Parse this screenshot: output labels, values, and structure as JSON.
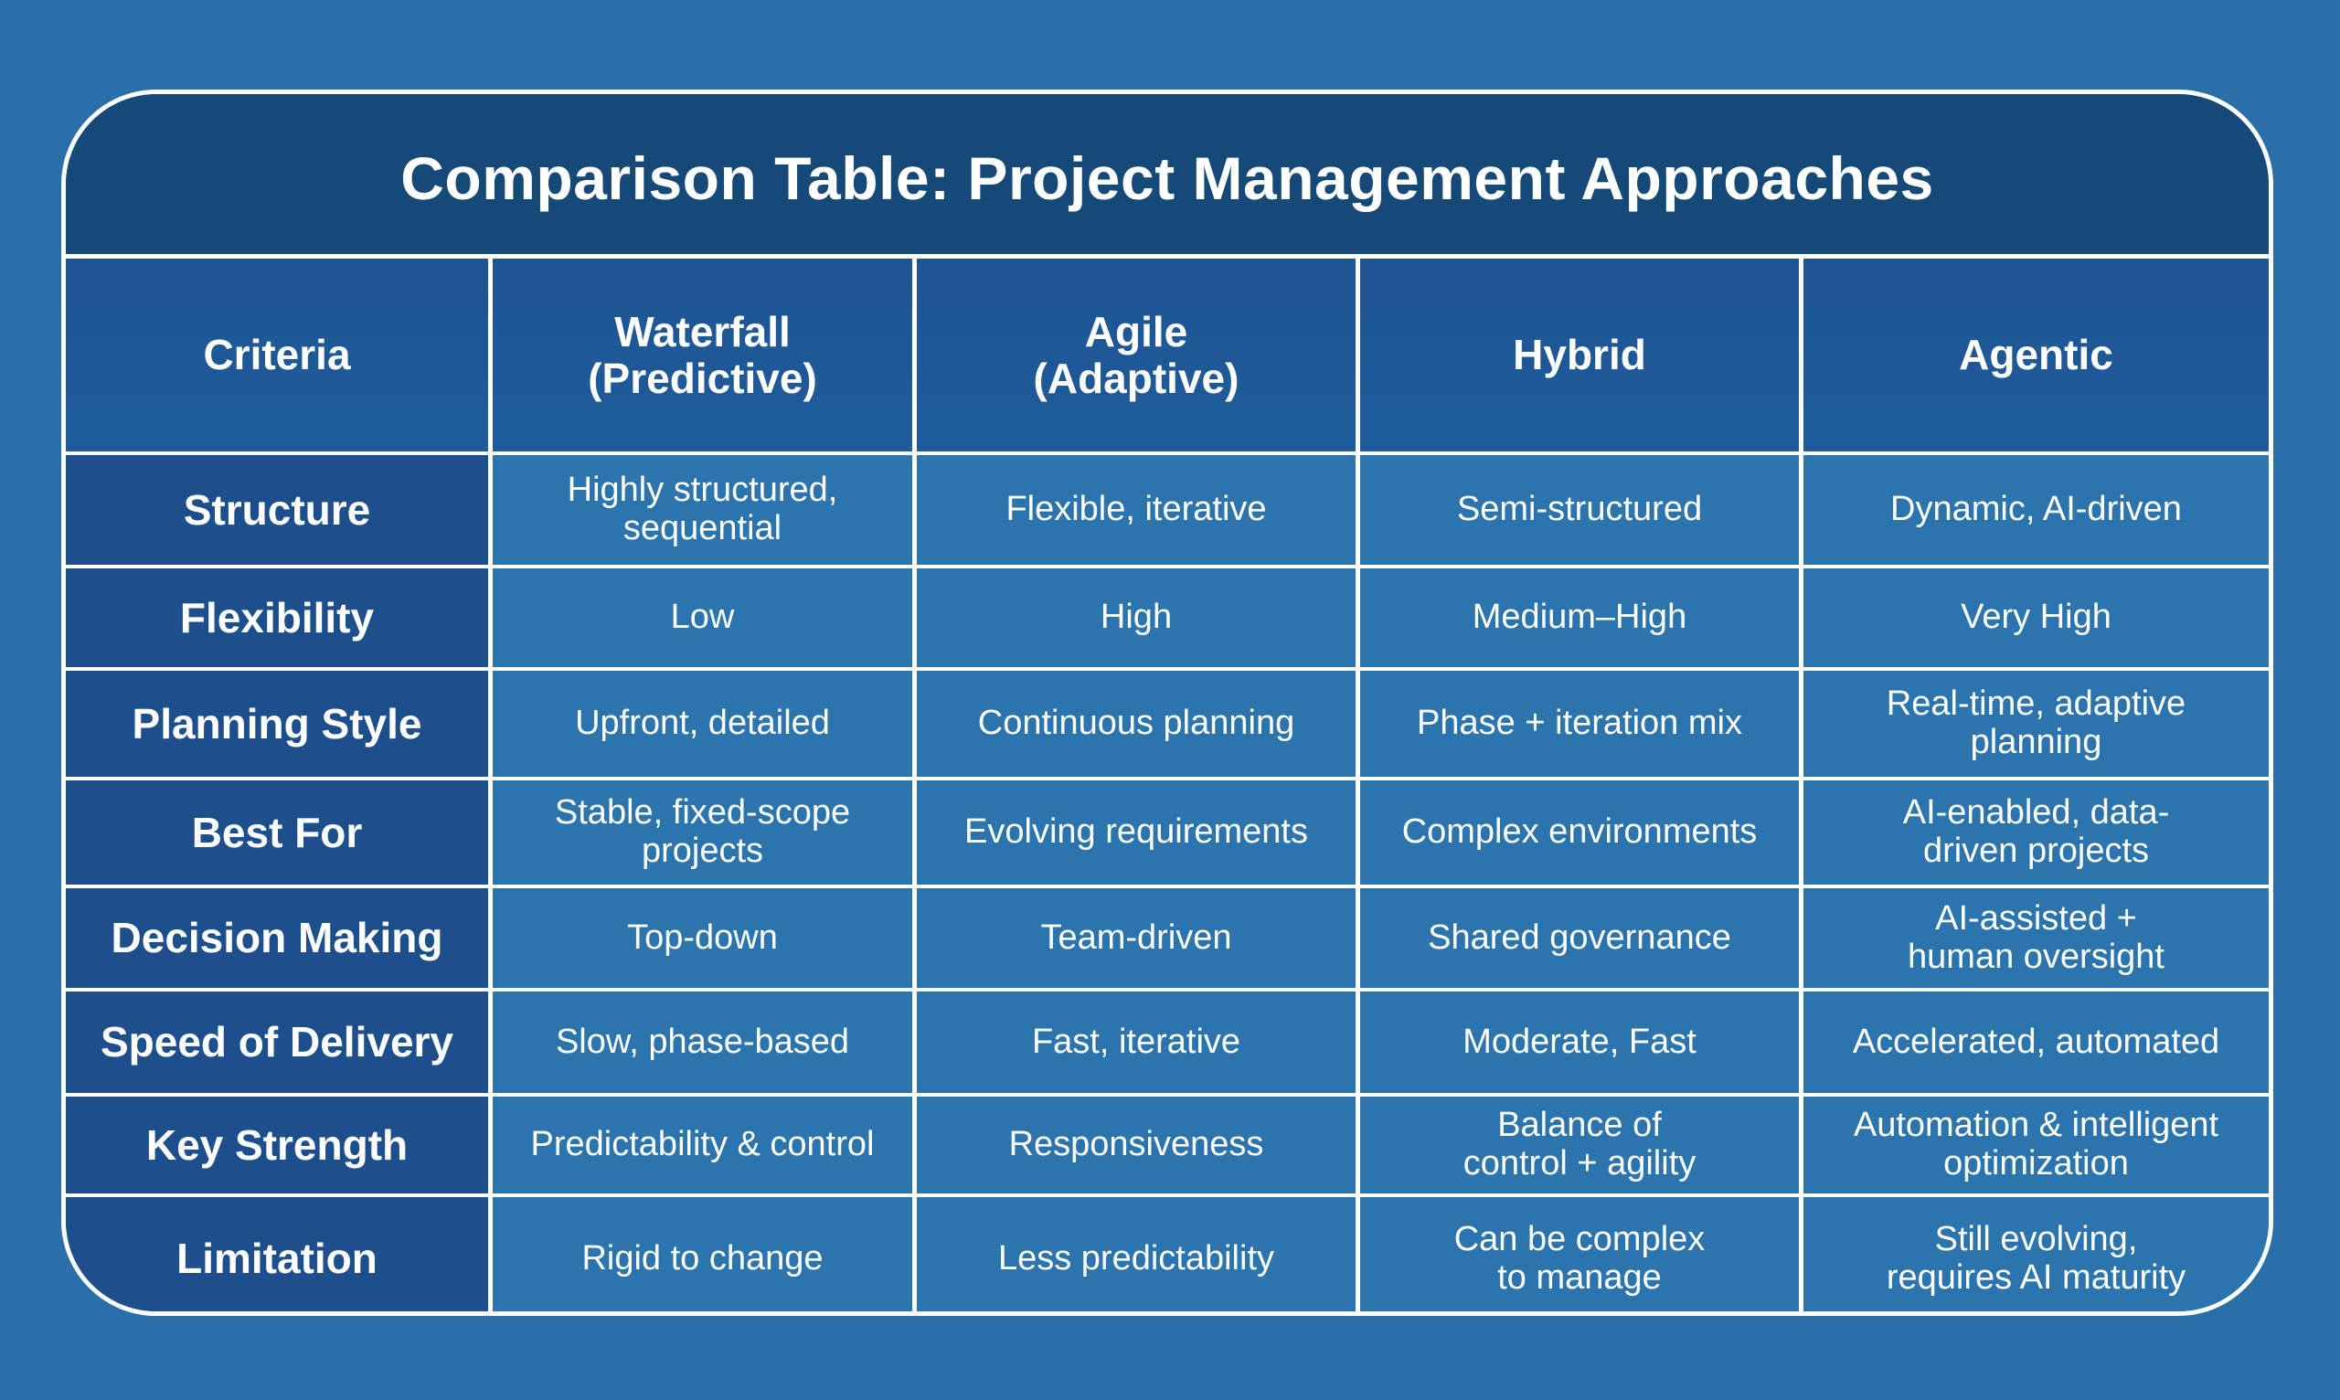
{
  "title": "Comparison Table: Project Management Approaches",
  "headers": [
    "Criteria",
    "Waterfall\n(Predictive)",
    "Agile\n(Adaptive)",
    "Hybrid",
    "Agentic"
  ],
  "rows": [
    {
      "criterion": "Structure",
      "values": [
        "Highly structured,\nsequential",
        "Flexible, iterative",
        "Semi-structured",
        "Dynamic, AI-driven"
      ]
    },
    {
      "criterion": "Flexibility",
      "values": [
        "Low",
        "High",
        "Medium–High",
        "Very High"
      ]
    },
    {
      "criterion": "Planning Style",
      "values": [
        "Upfront, detailed",
        "Continuous planning",
        "Phase + iteration mix",
        "Real-time, adaptive\nplanning"
      ]
    },
    {
      "criterion": "Best For",
      "values": [
        "Stable, fixed-scope\nprojects",
        "Evolving requirements",
        "Complex environments",
        "AI-enabled, data-\ndriven projects"
      ]
    },
    {
      "criterion": "Decision Making",
      "values": [
        "Top-down",
        "Team-driven",
        "Shared governance",
        "AI-assisted +\nhuman oversight"
      ]
    },
    {
      "criterion": "Speed of Delivery",
      "values": [
        "Slow, phase-based",
        "Fast, iterative",
        "Moderate, Fast",
        "Accelerated, automated"
      ]
    },
    {
      "criterion": "Key Strength",
      "values": [
        "Predictability & control",
        "Responsiveness",
        "Balance of\ncontrol + agility",
        "Automation & intelligent\noptimization"
      ]
    },
    {
      "criterion": "Limitation",
      "values": [
        "Rigid to change",
        "Less predictability",
        "Can be complex\nto manage",
        "Still evolving,\nrequires AI maturity"
      ]
    }
  ]
}
